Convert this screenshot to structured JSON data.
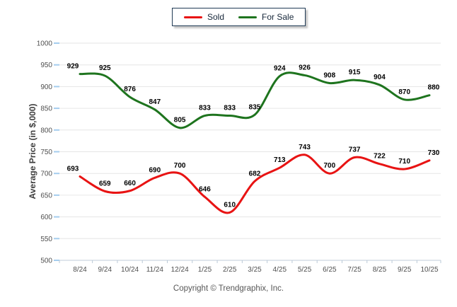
{
  "legend": {
    "items": [
      {
        "label": "Sold",
        "color": "#e81313"
      },
      {
        "label": "For Sale",
        "color": "#1e741e"
      }
    ]
  },
  "chart_data": {
    "type": "line",
    "categories": [
      "8/24",
      "9/24",
      "10/24",
      "11/24",
      "12/24",
      "1/25",
      "2/25",
      "3/25",
      "4/25",
      "5/25",
      "6/25",
      "7/25",
      "8/25",
      "9/25",
      "10/25"
    ],
    "series": [
      {
        "name": "Sold",
        "color": "#e81313",
        "values": [
          693,
          659,
          660,
          690,
          700,
          646,
          610,
          682,
          713,
          743,
          700,
          737,
          722,
          710,
          730
        ]
      },
      {
        "name": "For Sale",
        "color": "#1e741e",
        "values": [
          929,
          925,
          876,
          847,
          805,
          833,
          833,
          835,
          924,
          926,
          908,
          915,
          904,
          870,
          880
        ]
      }
    ],
    "ylabel": "Average Price (in $,000)",
    "ylim": [
      500,
      1000
    ],
    "ytick_step": 50,
    "grid": "horizontal",
    "legend_position": "top-center",
    "data_labels": true
  },
  "footer": {
    "copyright": "Copyright © Trendgraphix, Inc."
  },
  "colors": {
    "gridline": "#e6e6e6",
    "axis_line": "#d5dde6",
    "axis_tick": "#bac9d7",
    "y_tick_stub": "#a5cdee",
    "tick_label": "#4f4f4f",
    "data_label": "#000000",
    "legend_border": "#203a55"
  }
}
